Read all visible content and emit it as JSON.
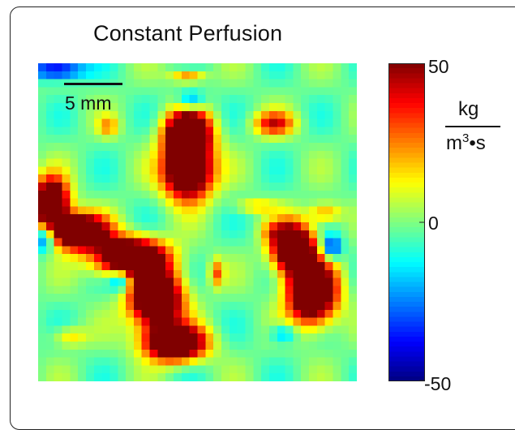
{
  "chart_data": {
    "type": "heatmap",
    "title": "Constant Perfusion",
    "scale_bar_label": "5 mm",
    "colorbar": {
      "min": -50,
      "max": 50,
      "ticks": [
        "50",
        "0",
        "-50"
      ],
      "unit_numerator": "kg",
      "unit_denominator": "m",
      "unit_exponent": "3",
      "unit_denominator_tail": "•s",
      "colormap": "jet"
    },
    "grid_resolution": 40,
    "background_level": -2,
    "features": [
      {
        "name": "upper-central-lobe-top",
        "cx": 0.47,
        "cy": 0.22,
        "rx": 0.065,
        "ry": 0.065,
        "value": 95
      },
      {
        "name": "upper-central-lobe-bottom",
        "cx": 0.47,
        "cy": 0.34,
        "rx": 0.07,
        "ry": 0.08,
        "value": 95
      },
      {
        "name": "upper-right-hotspot",
        "cx": 0.74,
        "cy": 0.19,
        "rx": 0.06,
        "ry": 0.035,
        "value": 38
      },
      {
        "name": "left-band-1",
        "cx": 0.04,
        "cy": 0.44,
        "rx": 0.05,
        "ry": 0.07,
        "value": 95
      },
      {
        "name": "left-band-2",
        "cx": 0.13,
        "cy": 0.53,
        "rx": 0.08,
        "ry": 0.05,
        "value": 95
      },
      {
        "name": "left-band-3",
        "cx": 0.29,
        "cy": 0.61,
        "rx": 0.1,
        "ry": 0.055,
        "value": 95
      },
      {
        "name": "left-band-4",
        "cx": 0.37,
        "cy": 0.74,
        "rx": 0.075,
        "ry": 0.085,
        "value": 95
      },
      {
        "name": "left-band-5",
        "cx": 0.43,
        "cy": 0.88,
        "rx": 0.085,
        "ry": 0.05,
        "value": 95
      },
      {
        "name": "right-blob-top",
        "cx": 0.8,
        "cy": 0.58,
        "rx": 0.06,
        "ry": 0.07,
        "value": 95
      },
      {
        "name": "right-blob-bottom",
        "cx": 0.86,
        "cy": 0.72,
        "rx": 0.07,
        "ry": 0.09,
        "value": 95
      },
      {
        "name": "top-left-cold",
        "cx": 0.06,
        "cy": 0.02,
        "rx": 0.08,
        "ry": 0.03,
        "value": -45
      },
      {
        "name": "top-mid-cold",
        "cx": 0.48,
        "cy": 0.12,
        "rx": 0.04,
        "ry": 0.03,
        "value": -30
      },
      {
        "name": "top-right-warm",
        "cx": 0.47,
        "cy": 0.04,
        "rx": 0.05,
        "ry": 0.02,
        "value": 28
      },
      {
        "name": "left-cold",
        "cx": 0.02,
        "cy": 0.55,
        "rx": 0.03,
        "ry": 0.04,
        "value": -38
      },
      {
        "name": "lower-left-cold",
        "cx": 0.26,
        "cy": 0.68,
        "rx": 0.035,
        "ry": 0.035,
        "value": -35
      },
      {
        "name": "right-cold",
        "cx": 0.92,
        "cy": 0.58,
        "rx": 0.03,
        "ry": 0.035,
        "value": -40
      },
      {
        "name": "lower-right-cold",
        "cx": 0.77,
        "cy": 0.85,
        "rx": 0.04,
        "ry": 0.03,
        "value": -25
      },
      {
        "name": "mid-warm-1",
        "cx": 0.56,
        "cy": 0.66,
        "rx": 0.02,
        "ry": 0.04,
        "value": 28
      },
      {
        "name": "mid-warm-2",
        "cx": 0.68,
        "cy": 0.45,
        "rx": 0.06,
        "ry": 0.02,
        "value": 18
      },
      {
        "name": "lower-warm",
        "cx": 0.1,
        "cy": 0.86,
        "rx": 0.05,
        "ry": 0.03,
        "value": 18
      },
      {
        "name": "right-edge-warm",
        "cx": 0.9,
        "cy": 0.47,
        "rx": 0.05,
        "ry": 0.03,
        "value": 25
      },
      {
        "name": "upper-left-warm",
        "cx": 0.22,
        "cy": 0.2,
        "rx": 0.03,
        "ry": 0.03,
        "value": 20
      },
      {
        "name": "mid-right-warm",
        "cx": 0.74,
        "cy": 0.53,
        "rx": 0.04,
        "ry": 0.03,
        "value": 15
      }
    ]
  }
}
